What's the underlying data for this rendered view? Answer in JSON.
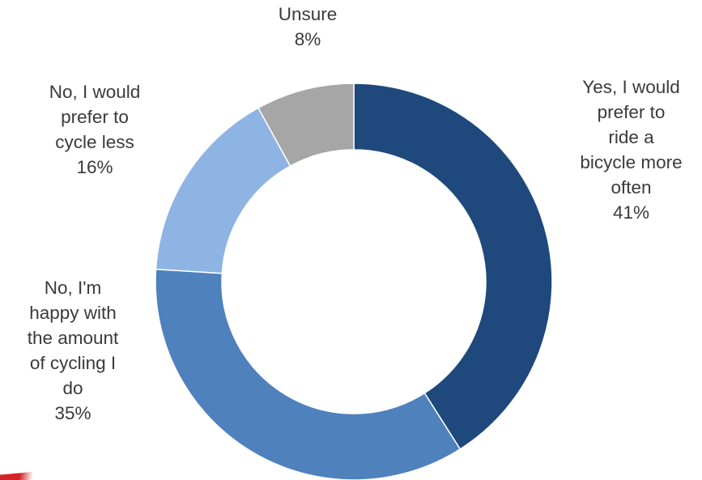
{
  "chart_data": {
    "type": "pie",
    "style": "donut",
    "title": "",
    "slices": [
      {
        "label_lines": [
          "Yes, I would",
          "prefer to",
          "ride a",
          "bicycle more",
          "often"
        ],
        "percent_label": "41%",
        "value": 41,
        "color": "#1f497d"
      },
      {
        "label_lines": [
          "No, I'm",
          "happy with",
          "the amount",
          "of cycling I",
          "do"
        ],
        "percent_label": "35%",
        "value": 35,
        "color": "#4f81bd"
      },
      {
        "label_lines": [
          "No, I would",
          "prefer to",
          "cycle less"
        ],
        "percent_label": "16%",
        "value": 16,
        "color": "#8eb4e3"
      },
      {
        "label_lines": [
          "Unsure"
        ],
        "percent_label": "8%",
        "value": 8,
        "color": "#a6a6a6"
      }
    ]
  }
}
